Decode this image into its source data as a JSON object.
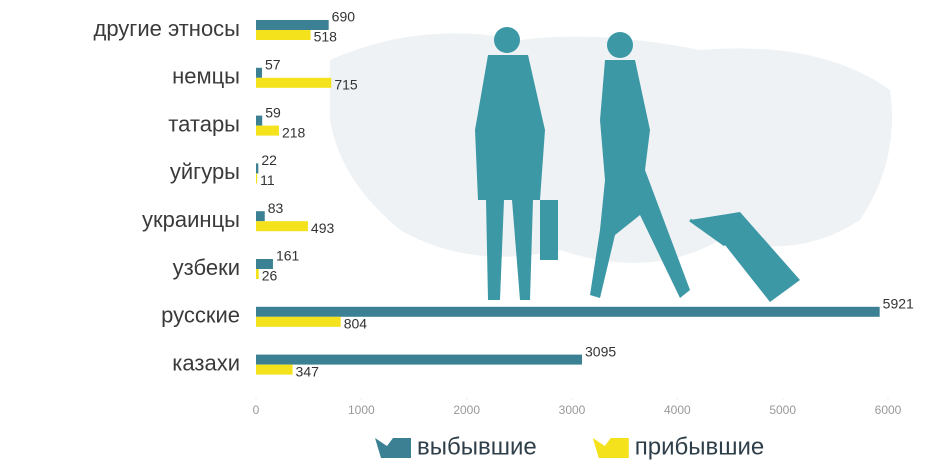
{
  "chart_data": {
    "type": "bar",
    "orientation": "horizontal",
    "categories": [
      "другие этносы",
      "немцы",
      "татары",
      "уйгуры",
      "украинцы",
      "узбеки",
      "русские",
      "казахи"
    ],
    "series": [
      {
        "name": "выбывшие",
        "color": "#3b8193",
        "values": [
          690,
          57,
          59,
          22,
          83,
          161,
          5921,
          3095
        ]
      },
      {
        "name": "прибывшие",
        "color": "#f4e21c",
        "values": [
          518,
          715,
          218,
          11,
          493,
          26,
          804,
          347
        ]
      }
    ],
    "xlim": [
      0,
      6000
    ],
    "xticks": [
      0,
      1000,
      2000,
      3000,
      4000,
      5000,
      6000
    ],
    "legend": "bottom"
  }
}
